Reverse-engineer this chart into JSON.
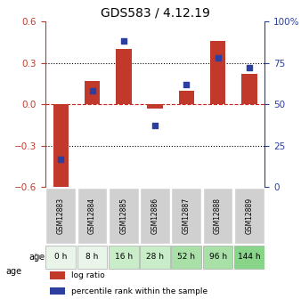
{
  "title": "GDS583 / 4.12.19",
  "samples": [
    "GSM12883",
    "GSM12884",
    "GSM12885",
    "GSM12886",
    "GSM12887",
    "GSM12888",
    "GSM12889"
  ],
  "ages": [
    "0 h",
    "8 h",
    "16 h",
    "28 h",
    "52 h",
    "96 h",
    "144 h"
  ],
  "log_ratios": [
    -0.63,
    0.17,
    0.4,
    -0.03,
    0.1,
    0.46,
    0.22
  ],
  "percentile_ranks": [
    17,
    58,
    88,
    37,
    62,
    78,
    72
  ],
  "bar_color": "#c0392b",
  "dot_color": "#2c3e9e",
  "ylim_left": [
    -0.6,
    0.6
  ],
  "ylim_right": [
    0,
    100
  ],
  "yticks_left": [
    -0.6,
    -0.3,
    0.0,
    0.3,
    0.6
  ],
  "yticks_right": [
    0,
    25,
    50,
    75,
    100
  ],
  "ytick_labels_right": [
    "0",
    "25",
    "50",
    "75",
    "100%"
  ],
  "hlines": [
    0.3,
    0.0,
    -0.3
  ],
  "age_colors": [
    "#e8f5e8",
    "#e8f5e8",
    "#c8edc8",
    "#c8edc8",
    "#a8e0a8",
    "#a8e0a8",
    "#88d488"
  ],
  "left_axis_color": "#c0392b",
  "right_axis_color": "#2c3e9e",
  "legend_items": [
    {
      "label": "log ratio",
      "color": "#c0392b",
      "marker": "s"
    },
    {
      "label": "percentile rank within the sample",
      "color": "#2c3e9e",
      "marker": "s"
    }
  ]
}
